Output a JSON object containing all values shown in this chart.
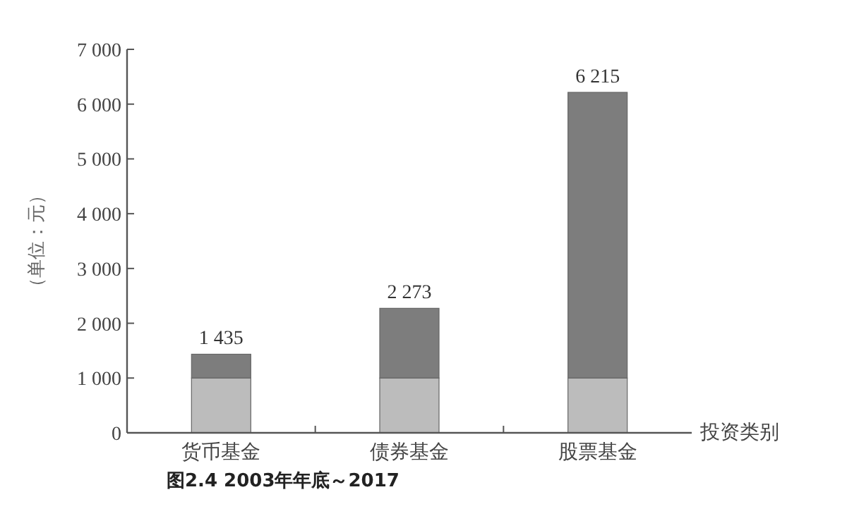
{
  "chart_data": {
    "type": "bar",
    "stacked": true,
    "categories": [
      "货币基金",
      "债券基金",
      "股票基金"
    ],
    "series": [
      {
        "color": "#bcbcbc",
        "values": [
          1000,
          1000,
          1000
        ]
      },
      {
        "color": "#7d7d7d",
        "values": [
          435,
          1273,
          5215
        ]
      }
    ],
    "totals": [
      "1 435",
      "2 273",
      "6 215"
    ],
    "ylim": [
      0,
      7000
    ],
    "yticks": [
      0,
      {
        "value": 1000,
        "label": "1 000"
      },
      {
        "value": 2000,
        "label": "2 000"
      },
      {
        "value": 3000,
        "label": "3 000"
      },
      {
        "value": 4000,
        "label": "4 000"
      },
      {
        "value": 5000,
        "label": "5 000"
      },
      {
        "value": 6000,
        "label": "6 000"
      },
      {
        "value": 7000,
        "label": "7 000"
      }
    ],
    "ylabel": "（单位：元）",
    "xlabel": "投资类别",
    "annotations": [
      "图2.4 2003年年底～2017"
    ],
    "grid": false
  }
}
